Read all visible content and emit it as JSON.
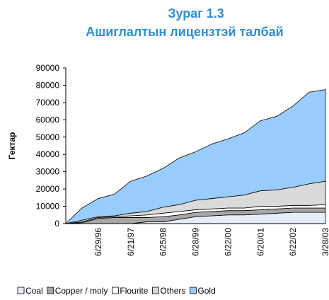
{
  "chart_data": {
    "type": "stacked_area",
    "title": "Зураг 1.3",
    "subtitle": "Ашиглалтын  лицензтэй талбай",
    "ylabel": "Гектар",
    "categories": [
      null,
      null,
      "6/29/96",
      null,
      "6/21/97",
      null,
      "6/25/98",
      null,
      "6/28/99",
      null,
      "6/22/00",
      null,
      "6/20/01",
      null,
      "6/22/02",
      null,
      "3/28/03"
    ],
    "series": [
      {
        "name": "Coal",
        "color": "#e4eef9",
        "values": [
          0,
          0,
          0,
          0,
          0,
          1000,
          1000,
          2500,
          4000,
          4500,
          5000,
          5000,
          5500,
          6000,
          6500,
          6500,
          6500
        ]
      },
      {
        "name": "Copper / moly",
        "color": "#a6a6a6",
        "values": [
          0,
          500,
          3000,
          3500,
          3500,
          2500,
          3000,
          2500,
          2500,
          2500,
          2500,
          2500,
          2500,
          2500,
          2500,
          2500,
          2500
        ]
      },
      {
        "name": "Flourite",
        "color": "#ffffff",
        "values": [
          0,
          500,
          500,
          500,
          1000,
          1500,
          2000,
          2000,
          1500,
          1500,
          1500,
          1500,
          2000,
          1500,
          1500,
          1500,
          2000
        ]
      },
      {
        "name": "Others",
        "color": "#dadada",
        "values": [
          0,
          1000,
          500,
          500,
          1500,
          2000,
          3500,
          4000,
          5500,
          6000,
          6500,
          7500,
          9000,
          9500,
          10500,
          12500,
          13500
        ]
      },
      {
        "name": "Gold",
        "color": "#99ccff",
        "values": [
          0,
          7000,
          10500,
          12500,
          18500,
          20500,
          22500,
          27000,
          28000,
          31500,
          33500,
          36000,
          40500,
          42500,
          47000,
          53000,
          53000
        ]
      }
    ],
    "ylim": [
      0,
      90000
    ],
    "yticks": [
      0,
      10000,
      20000,
      30000,
      40000,
      50000,
      60000,
      70000,
      80000,
      90000
    ],
    "legend": "bottom"
  }
}
